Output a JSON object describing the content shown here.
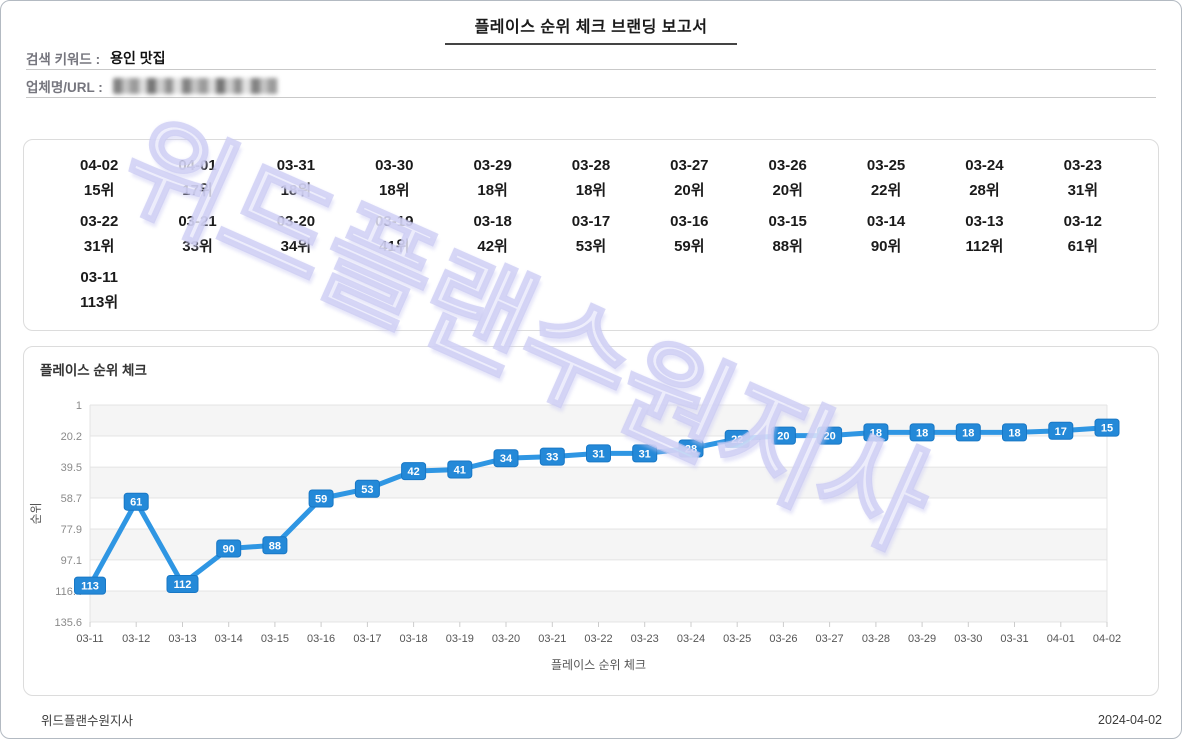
{
  "header": {
    "title": "플레이스 순위 체크 브랜딩 보고서",
    "keyword_label": "검색 키워드 :",
    "keyword_value": "용인 맛집",
    "business_label": "업체명/URL :"
  },
  "watermark_text": "위드플랜수원지사",
  "rank_grid": [
    {
      "date": "04-02",
      "rank": "15위"
    },
    {
      "date": "04-01",
      "rank": "17위"
    },
    {
      "date": "03-31",
      "rank": "18위"
    },
    {
      "date": "03-30",
      "rank": "18위"
    },
    {
      "date": "03-29",
      "rank": "18위"
    },
    {
      "date": "03-28",
      "rank": "18위"
    },
    {
      "date": "03-27",
      "rank": "20위"
    },
    {
      "date": "03-26",
      "rank": "20위"
    },
    {
      "date": "03-25",
      "rank": "22위"
    },
    {
      "date": "03-24",
      "rank": "28위"
    },
    {
      "date": "03-23",
      "rank": "31위"
    },
    {
      "date": "03-22",
      "rank": "31위"
    },
    {
      "date": "03-21",
      "rank": "33위"
    },
    {
      "date": "03-20",
      "rank": "34위"
    },
    {
      "date": "03-19",
      "rank": "41위"
    },
    {
      "date": "03-18",
      "rank": "42위"
    },
    {
      "date": "03-17",
      "rank": "53위"
    },
    {
      "date": "03-16",
      "rank": "59위"
    },
    {
      "date": "03-15",
      "rank": "88위"
    },
    {
      "date": "03-14",
      "rank": "90위"
    },
    {
      "date": "03-13",
      "rank": "112위"
    },
    {
      "date": "03-12",
      "rank": "61위"
    },
    {
      "date": "03-11",
      "rank": "113위"
    }
  ],
  "chart_data": {
    "type": "line",
    "title": "플레이스 순위 체크",
    "xlabel": "플레이스 순위 체크",
    "ylabel": "순위",
    "x": [
      "03-11",
      "03-12",
      "03-13",
      "03-14",
      "03-15",
      "03-16",
      "03-17",
      "03-18",
      "03-19",
      "03-20",
      "03-21",
      "03-22",
      "03-23",
      "03-24",
      "03-25",
      "03-26",
      "03-27",
      "03-28",
      "03-29",
      "03-30",
      "03-31",
      "04-01",
      "04-02"
    ],
    "values": [
      113,
      61,
      112,
      90,
      88,
      59,
      53,
      42,
      41,
      34,
      33,
      31,
      31,
      28,
      22,
      20,
      20,
      18,
      18,
      18,
      18,
      17,
      15
    ],
    "y_ticks": [
      1,
      20.2,
      39.5,
      58.7,
      77.9,
      97.1,
      116.4,
      135.6
    ],
    "y_axis_inverted": true,
    "grid": true,
    "legend": "none",
    "band_color": "#f5f5f5",
    "grid_color": "#e4e4e4",
    "line_color": "#2f96e3",
    "label_bg": "#2489d8",
    "label_border": "#1877c5"
  },
  "footer": {
    "left": "위드플랜수원지사",
    "right": "2024-04-02"
  }
}
